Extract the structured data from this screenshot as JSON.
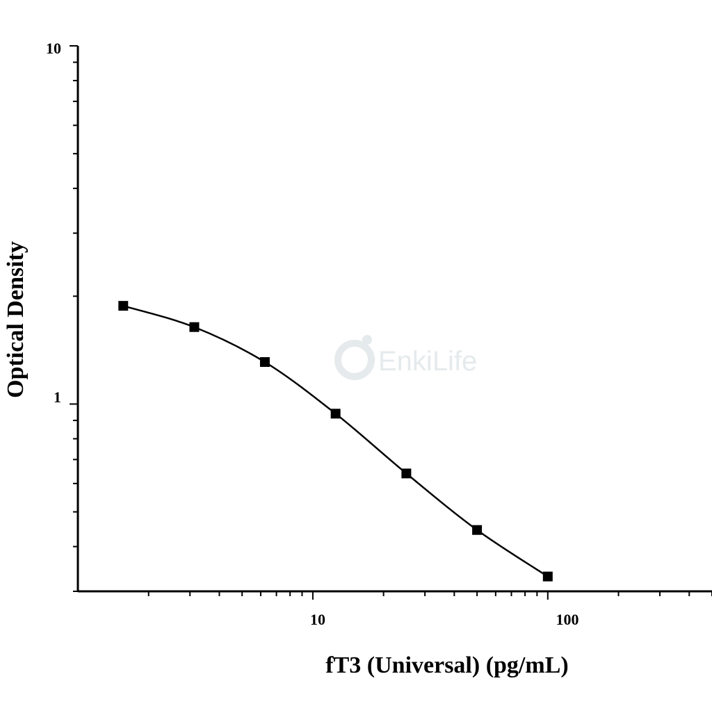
{
  "chart_data": {
    "type": "line",
    "xlabel": "fT3 (Universal) (pg/mL)",
    "ylabel": "Optical Density",
    "x_scale": "log",
    "y_scale": "log",
    "xlim": [
      1,
      500
    ],
    "ylim": [
      0.3,
      10
    ],
    "x_tick_labels": [
      "10",
      "100"
    ],
    "y_tick_labels": [
      "1",
      "10"
    ],
    "grid": false,
    "legend": "none",
    "marker": "square",
    "line_color": "#000000",
    "marker_color": "#000000",
    "series": [
      {
        "x": [
          1.56,
          3.13,
          6.25,
          12.5,
          25,
          50,
          100
        ],
        "y": [
          1.88,
          1.64,
          1.31,
          0.94,
          0.64,
          0.445,
          0.33
        ]
      }
    ]
  },
  "watermark": {
    "text": "EnkiLife"
  }
}
